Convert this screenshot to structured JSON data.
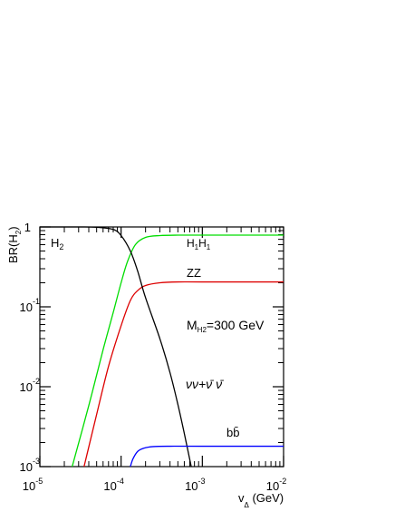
{
  "chart_data": {
    "type": "line",
    "panel_label": "H2",
    "xlabel": "v_Δ (GeV)",
    "ylabel": "BR(H2)",
    "x_scale": "log",
    "y_scale": "log",
    "xlim": [
      1e-05,
      0.01
    ],
    "ylim": [
      0.001,
      1
    ],
    "grid": false,
    "x_ticks": [
      {
        "base": "10",
        "exp": "-5",
        "value": 1e-05
      },
      {
        "base": "10",
        "exp": "-4",
        "value": 0.0001
      },
      {
        "base": "10",
        "exp": "-3",
        "value": 0.001
      },
      {
        "base": "10",
        "exp": "-2",
        "value": 0.01
      }
    ],
    "y_ticks": [
      {
        "base": "10",
        "exp": "-3",
        "value": 0.001
      },
      {
        "base": "10",
        "exp": "-2",
        "value": 0.01
      },
      {
        "base": "10",
        "exp": "-1",
        "value": 0.1
      },
      {
        "base": "1",
        "exp": "",
        "value": 1
      }
    ],
    "annotation": "M_H2=300 GeV",
    "series": [
      {
        "name": "H1H1",
        "color": "#00dd00",
        "x": [
          2.5e-05,
          4e-05,
          6e-05,
          8e-05,
          0.0001,
          0.00012,
          0.00015,
          0.0002,
          0.0003,
          0.0005,
          0.001,
          0.01
        ],
        "y": [
          0.001,
          0.0058,
          0.029,
          0.085,
          0.2,
          0.37,
          0.6,
          0.74,
          0.78,
          0.79,
          0.79,
          0.79
        ]
      },
      {
        "name": "ZZ",
        "color": "#dd0000",
        "x": [
          3.5e-05,
          5e-05,
          7e-05,
          0.0001,
          0.00013,
          0.00016,
          0.0002,
          0.0003,
          0.0005,
          0.001,
          0.01
        ],
        "y": [
          0.001,
          0.0045,
          0.018,
          0.058,
          0.12,
          0.16,
          0.185,
          0.2,
          0.205,
          0.205,
          0.205
        ]
      },
      {
        "name": "νν+ν̄ν̄",
        "color": "#000000",
        "x": [
          1e-05,
          3e-05,
          5e-05,
          8e-05,
          0.0001,
          0.00013,
          0.00016,
          0.0002,
          0.0003,
          0.0004,
          0.0005,
          0.0006,
          0.00073
        ],
        "y": [
          1,
          1,
          0.99,
          0.93,
          0.78,
          0.5,
          0.28,
          0.13,
          0.04,
          0.015,
          0.006,
          0.0026,
          0.001
        ]
      },
      {
        "name": "bb̄",
        "color": "#0000ff",
        "x": [
          0.00013,
          0.00014,
          0.00016,
          0.00019,
          0.00025,
          0.0004,
          0.001,
          0.01
        ],
        "y": [
          0.001,
          0.00125,
          0.00155,
          0.0017,
          0.00178,
          0.0018,
          0.0018,
          0.0018
        ]
      }
    ]
  }
}
